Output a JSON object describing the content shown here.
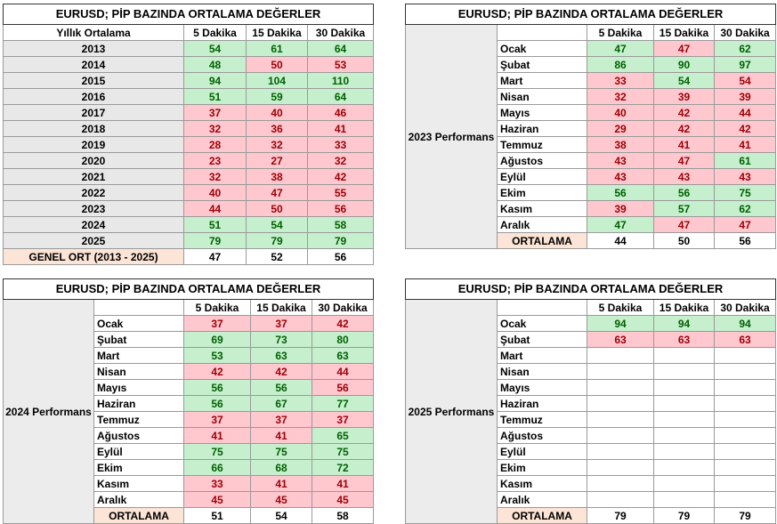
{
  "t1": {
    "title": "EURUSD; PİP BAZINDA ORTALAMA DEĞERLER",
    "header": [
      "Yıllık Ortalama",
      "5 Dakika",
      "15 Dakika",
      "30 Dakika"
    ],
    "rows": [
      {
        "label": "2013",
        "v": [
          54,
          61,
          64
        ],
        "c": [
          "g",
          "g",
          "g"
        ]
      },
      {
        "label": "2014",
        "v": [
          48,
          50,
          53
        ],
        "c": [
          "g",
          "r",
          "r"
        ]
      },
      {
        "label": "2015",
        "v": [
          94,
          104,
          110
        ],
        "c": [
          "g",
          "g",
          "g"
        ]
      },
      {
        "label": "2016",
        "v": [
          51,
          59,
          64
        ],
        "c": [
          "g",
          "g",
          "g"
        ]
      },
      {
        "label": "2017",
        "v": [
          37,
          40,
          46
        ],
        "c": [
          "r",
          "r",
          "r"
        ]
      },
      {
        "label": "2018",
        "v": [
          32,
          36,
          41
        ],
        "c": [
          "r",
          "r",
          "r"
        ]
      },
      {
        "label": "2019",
        "v": [
          28,
          32,
          33
        ],
        "c": [
          "r",
          "r",
          "r"
        ]
      },
      {
        "label": "2020",
        "v": [
          23,
          27,
          32
        ],
        "c": [
          "r",
          "r",
          "r"
        ]
      },
      {
        "label": "2021",
        "v": [
          32,
          38,
          42
        ],
        "c": [
          "r",
          "r",
          "r"
        ]
      },
      {
        "label": "2022",
        "v": [
          40,
          47,
          55
        ],
        "c": [
          "r",
          "r",
          "r"
        ]
      },
      {
        "label": "2023",
        "v": [
          44,
          50,
          56
        ],
        "c": [
          "r",
          "r",
          "r"
        ]
      },
      {
        "label": "2024",
        "v": [
          51,
          54,
          58
        ],
        "c": [
          "g",
          "g",
          "g"
        ]
      },
      {
        "label": "2025",
        "v": [
          79,
          79,
          79
        ],
        "c": [
          "g",
          "g",
          "g"
        ]
      }
    ],
    "footer": {
      "label": "GENEL ORT (2013 - 2025)",
      "v": [
        47,
        52,
        56
      ]
    }
  },
  "t2": {
    "title": "EURUSD; PİP BAZINDA ORTALAMA DEĞERLER",
    "header": [
      "5 Dakika",
      "15 Dakika",
      "30 Dakika"
    ],
    "side": "2023 Performans",
    "rows": [
      {
        "label": "Ocak",
        "v": [
          47,
          47,
          62
        ],
        "c": [
          "g",
          "r",
          "g"
        ]
      },
      {
        "label": "Şubat",
        "v": [
          86,
          90,
          97
        ],
        "c": [
          "g",
          "g",
          "g"
        ]
      },
      {
        "label": "Mart",
        "v": [
          33,
          54,
          54
        ],
        "c": [
          "r",
          "g",
          "r"
        ]
      },
      {
        "label": "Nisan",
        "v": [
          32,
          39,
          39
        ],
        "c": [
          "r",
          "r",
          "r"
        ]
      },
      {
        "label": "Mayıs",
        "v": [
          40,
          42,
          44
        ],
        "c": [
          "r",
          "r",
          "r"
        ]
      },
      {
        "label": "Haziran",
        "v": [
          29,
          42,
          42
        ],
        "c": [
          "r",
          "r",
          "r"
        ]
      },
      {
        "label": "Temmuz",
        "v": [
          38,
          41,
          41
        ],
        "c": [
          "r",
          "r",
          "r"
        ]
      },
      {
        "label": "Ağustos",
        "v": [
          43,
          47,
          61
        ],
        "c": [
          "r",
          "r",
          "g"
        ]
      },
      {
        "label": "Eylül",
        "v": [
          43,
          43,
          43
        ],
        "c": [
          "r",
          "r",
          "r"
        ]
      },
      {
        "label": "Ekim",
        "v": [
          56,
          56,
          75
        ],
        "c": [
          "g",
          "g",
          "g"
        ]
      },
      {
        "label": "Kasım",
        "v": [
          39,
          57,
          62
        ],
        "c": [
          "r",
          "g",
          "g"
        ]
      },
      {
        "label": "Aralık",
        "v": [
          47,
          47,
          47
        ],
        "c": [
          "g",
          "r",
          "r"
        ]
      }
    ],
    "footer": {
      "label": "ORTALAMA",
      "v": [
        44,
        50,
        56
      ]
    }
  },
  "t3": {
    "title": "EURUSD; PİP BAZINDA ORTALAMA DEĞERLER",
    "header": [
      "5 Dakika",
      "15 Dakika",
      "30 Dakika"
    ],
    "side": "2024 Performans",
    "rows": [
      {
        "label": "Ocak",
        "v": [
          37,
          37,
          42
        ],
        "c": [
          "r",
          "r",
          "r"
        ]
      },
      {
        "label": "Şubat",
        "v": [
          69,
          73,
          80
        ],
        "c": [
          "g",
          "g",
          "g"
        ]
      },
      {
        "label": "Mart",
        "v": [
          53,
          63,
          63
        ],
        "c": [
          "g",
          "g",
          "g"
        ]
      },
      {
        "label": "Nisan",
        "v": [
          42,
          42,
          44
        ],
        "c": [
          "r",
          "r",
          "r"
        ]
      },
      {
        "label": "Mayıs",
        "v": [
          56,
          56,
          56
        ],
        "c": [
          "g",
          "g",
          "r"
        ]
      },
      {
        "label": "Haziran",
        "v": [
          56,
          67,
          77
        ],
        "c": [
          "g",
          "g",
          "g"
        ]
      },
      {
        "label": "Temmuz",
        "v": [
          37,
          37,
          37
        ],
        "c": [
          "r",
          "r",
          "r"
        ]
      },
      {
        "label": "Ağustos",
        "v": [
          41,
          41,
          65
        ],
        "c": [
          "r",
          "r",
          "g"
        ]
      },
      {
        "label": "Eylül",
        "v": [
          75,
          75,
          75
        ],
        "c": [
          "g",
          "g",
          "g"
        ]
      },
      {
        "label": "Ekim",
        "v": [
          66,
          68,
          72
        ],
        "c": [
          "g",
          "g",
          "g"
        ]
      },
      {
        "label": "Kasım",
        "v": [
          33,
          41,
          41
        ],
        "c": [
          "r",
          "r",
          "r"
        ]
      },
      {
        "label": "Aralık",
        "v": [
          45,
          45,
          45
        ],
        "c": [
          "r",
          "r",
          "r"
        ]
      }
    ],
    "footer": {
      "label": "ORTALAMA",
      "v": [
        51,
        54,
        58
      ]
    }
  },
  "t4": {
    "title": "EURUSD; PİP BAZINDA ORTALAMA DEĞERLER",
    "header": [
      "5 Dakika",
      "15 Dakika",
      "30 Dakika"
    ],
    "side": "2025 Performans",
    "rows": [
      {
        "label": "Ocak",
        "v": [
          94,
          94,
          94
        ],
        "c": [
          "g",
          "g",
          "g"
        ]
      },
      {
        "label": "Şubat",
        "v": [
          63,
          63,
          63
        ],
        "c": [
          "r",
          "r",
          "r"
        ]
      },
      {
        "label": "Mart",
        "v": [
          "",
          "",
          ""
        ],
        "c": [
          "e",
          "e",
          "e"
        ]
      },
      {
        "label": "Nisan",
        "v": [
          "",
          "",
          ""
        ],
        "c": [
          "e",
          "e",
          "e"
        ]
      },
      {
        "label": "Mayıs",
        "v": [
          "",
          "",
          ""
        ],
        "c": [
          "e",
          "e",
          "e"
        ]
      },
      {
        "label": "Haziran",
        "v": [
          "",
          "",
          ""
        ],
        "c": [
          "e",
          "e",
          "e"
        ]
      },
      {
        "label": "Temmuz",
        "v": [
          "",
          "",
          ""
        ],
        "c": [
          "e",
          "e",
          "e"
        ]
      },
      {
        "label": "Ağustos",
        "v": [
          "",
          "",
          ""
        ],
        "c": [
          "e",
          "e",
          "e"
        ]
      },
      {
        "label": "Eylül",
        "v": [
          "",
          "",
          ""
        ],
        "c": [
          "e",
          "e",
          "e"
        ]
      },
      {
        "label": "Ekim",
        "v": [
          "",
          "",
          ""
        ],
        "c": [
          "e",
          "e",
          "e"
        ]
      },
      {
        "label": "Kasım",
        "v": [
          "",
          "",
          ""
        ],
        "c": [
          "e",
          "e",
          "e"
        ]
      },
      {
        "label": "Aralık",
        "v": [
          "",
          "",
          ""
        ],
        "c": [
          "e",
          "e",
          "e"
        ]
      }
    ],
    "footer": {
      "label": "ORTALAMA",
      "v": [
        79,
        79,
        79
      ]
    }
  }
}
